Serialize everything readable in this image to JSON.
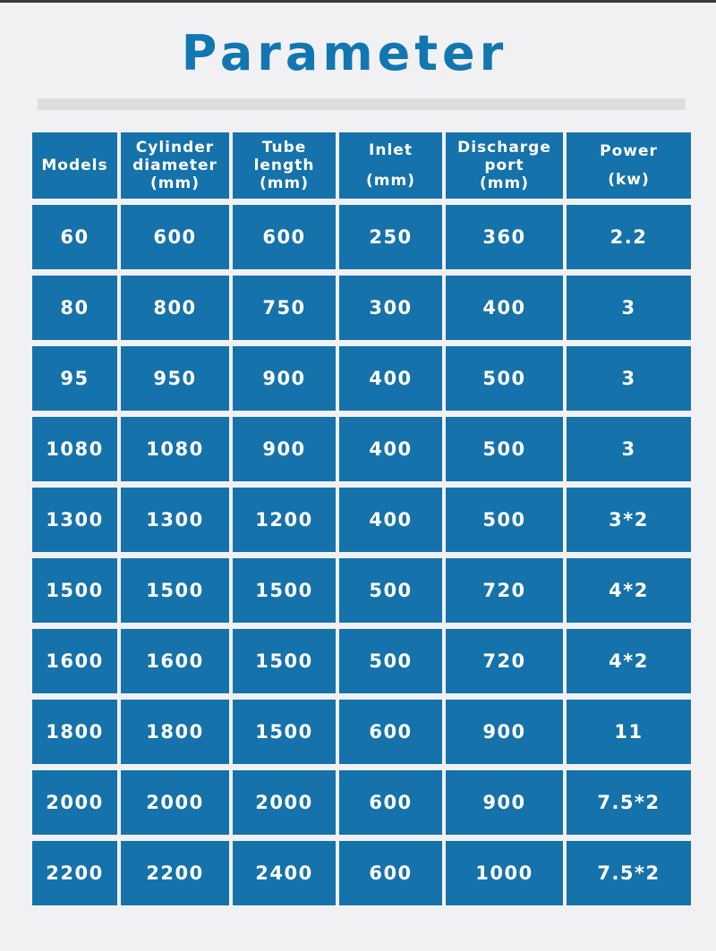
{
  "title": "Parameter",
  "table": {
    "headers": [
      {
        "lines": [
          "Models"
        ]
      },
      {
        "lines": [
          "Cylinder",
          "diameter",
          "(mm)"
        ]
      },
      {
        "lines": [
          "Tube",
          "length",
          "(mm)"
        ]
      },
      {
        "lines": [
          "Inlet",
          "",
          "(mm)"
        ]
      },
      {
        "lines": [
          "Discharge",
          "port",
          "(mm)"
        ]
      },
      {
        "lines": [
          "Power",
          "(kw)"
        ]
      }
    ],
    "rows": [
      [
        "60",
        "600",
        "600",
        "250",
        "360",
        "2.2"
      ],
      [
        "80",
        "800",
        "750",
        "300",
        "400",
        "3"
      ],
      [
        "95",
        "950",
        "900",
        "400",
        "500",
        "3"
      ],
      [
        "1080",
        "1080",
        "900",
        "400",
        "500",
        "3"
      ],
      [
        "1300",
        "1300",
        "1200",
        "400",
        "500",
        "3*2"
      ],
      [
        "1500",
        "1500",
        "1500",
        "500",
        "720",
        "4*2"
      ],
      [
        "1600",
        "1600",
        "1500",
        "500",
        "720",
        "4*2"
      ],
      [
        "1800",
        "1800",
        "1500",
        "600",
        "900",
        "11"
      ],
      [
        "2000",
        "2000",
        "2000",
        "600",
        "900",
        "7.5*2"
      ],
      [
        "2200",
        "2200",
        "2400",
        "600",
        "1000",
        "7.5*2"
      ]
    ]
  },
  "colors": {
    "title": "#1276b0",
    "cell_background": "#1572aa",
    "cell_text": "#ffffff",
    "page_background": "#f1f1f3"
  }
}
